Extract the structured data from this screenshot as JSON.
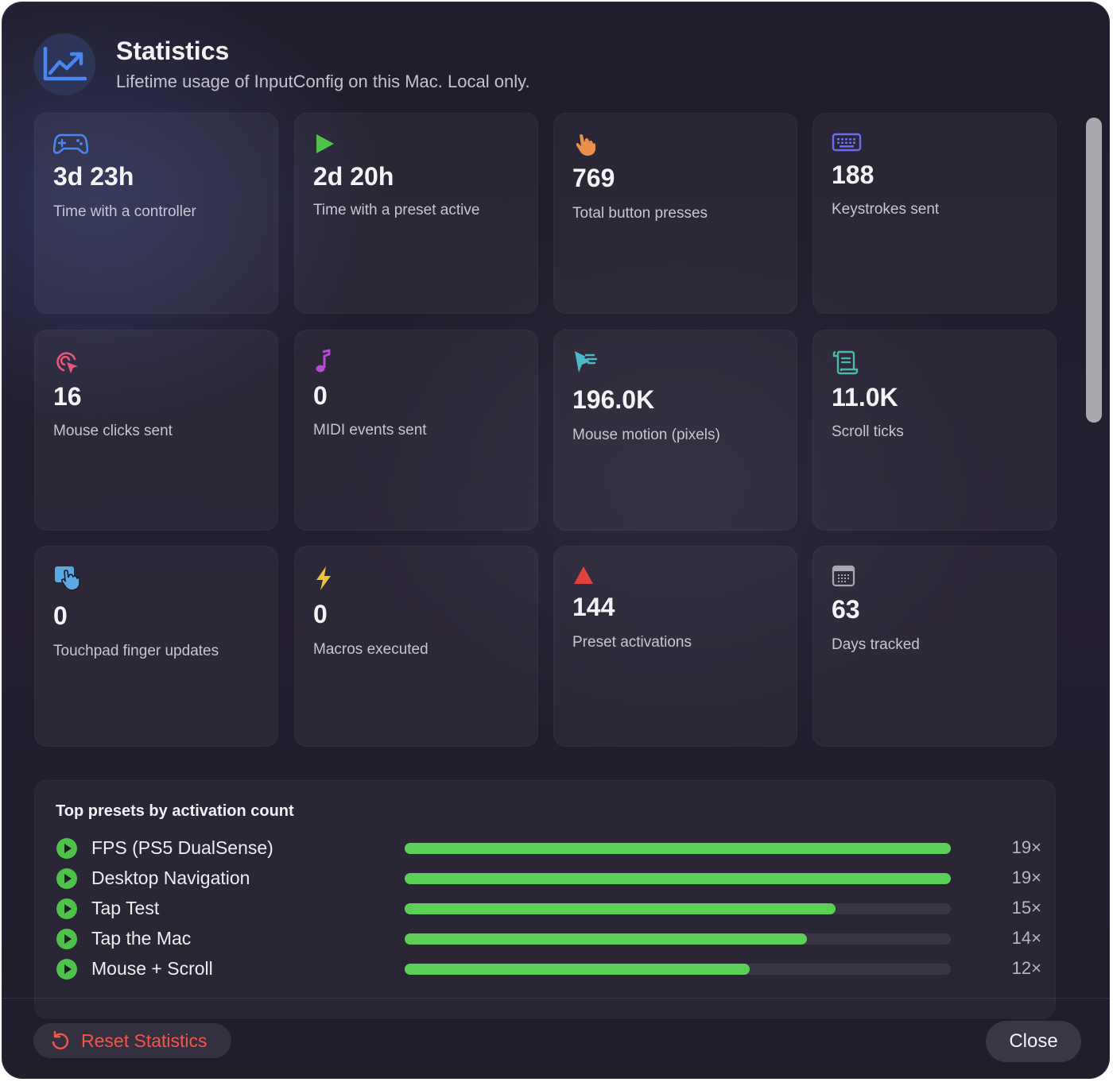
{
  "header": {
    "title": "Statistics",
    "subtitle": "Lifetime usage of InputConfig on this Mac. Local only.",
    "icon": "chart-line-up-icon"
  },
  "stats": [
    {
      "value": "3d 23h",
      "label": "Time with a controller",
      "icon": "gamecontroller-icon",
      "color": "#4a86f0"
    },
    {
      "value": "2d 20h",
      "label": "Time with a preset active",
      "icon": "play-icon",
      "color": "#4ec24a"
    },
    {
      "value": "769",
      "label": "Total button presses",
      "icon": "hand-point-icon",
      "color": "#e9904a"
    },
    {
      "value": "188",
      "label": "Keystrokes sent",
      "icon": "keyboard-icon",
      "color": "#6b6cf0"
    },
    {
      "value": "16",
      "label": "Mouse clicks sent",
      "icon": "cursor-click-icon",
      "color": "#e8577a"
    },
    {
      "value": "0",
      "label": "MIDI events sent",
      "icon": "music-note-icon",
      "color": "#b84ad6"
    },
    {
      "value": "196.0K",
      "label": "Mouse motion (pixels)",
      "icon": "cursor-motion-icon",
      "color": "#4cb9c9"
    },
    {
      "value": "11.0K",
      "label": "Scroll ticks",
      "icon": "scroll-icon",
      "color": "#4cb9a6"
    },
    {
      "value": "0",
      "label": "Touchpad finger updates",
      "icon": "touchpad-icon",
      "color": "#5aa9e0"
    },
    {
      "value": "0",
      "label": "Macros executed",
      "icon": "bolt-icon",
      "color": "#f0c23a"
    },
    {
      "value": "144",
      "label": "Preset activations",
      "icon": "triangle-icon",
      "color": "#e0433e"
    },
    {
      "value": "63",
      "label": "Days tracked",
      "icon": "calendar-icon",
      "color": "#a7a6b2"
    }
  ],
  "presets": {
    "title": "Top presets by activation count",
    "items": [
      {
        "name": "FPS (PS5 DualSense)",
        "count": "19×",
        "fraction": 1.0
      },
      {
        "name": "Desktop Navigation",
        "count": "19×",
        "fraction": 1.0
      },
      {
        "name": "Tap Test",
        "count": "15×",
        "fraction": 0.789
      },
      {
        "name": "Tap the Mac",
        "count": "14×",
        "fraction": 0.737
      },
      {
        "name": "Mouse + Scroll",
        "count": "12×",
        "fraction": 0.632
      }
    ]
  },
  "footer": {
    "reset_label": "Reset Statistics",
    "close_label": "Close"
  }
}
